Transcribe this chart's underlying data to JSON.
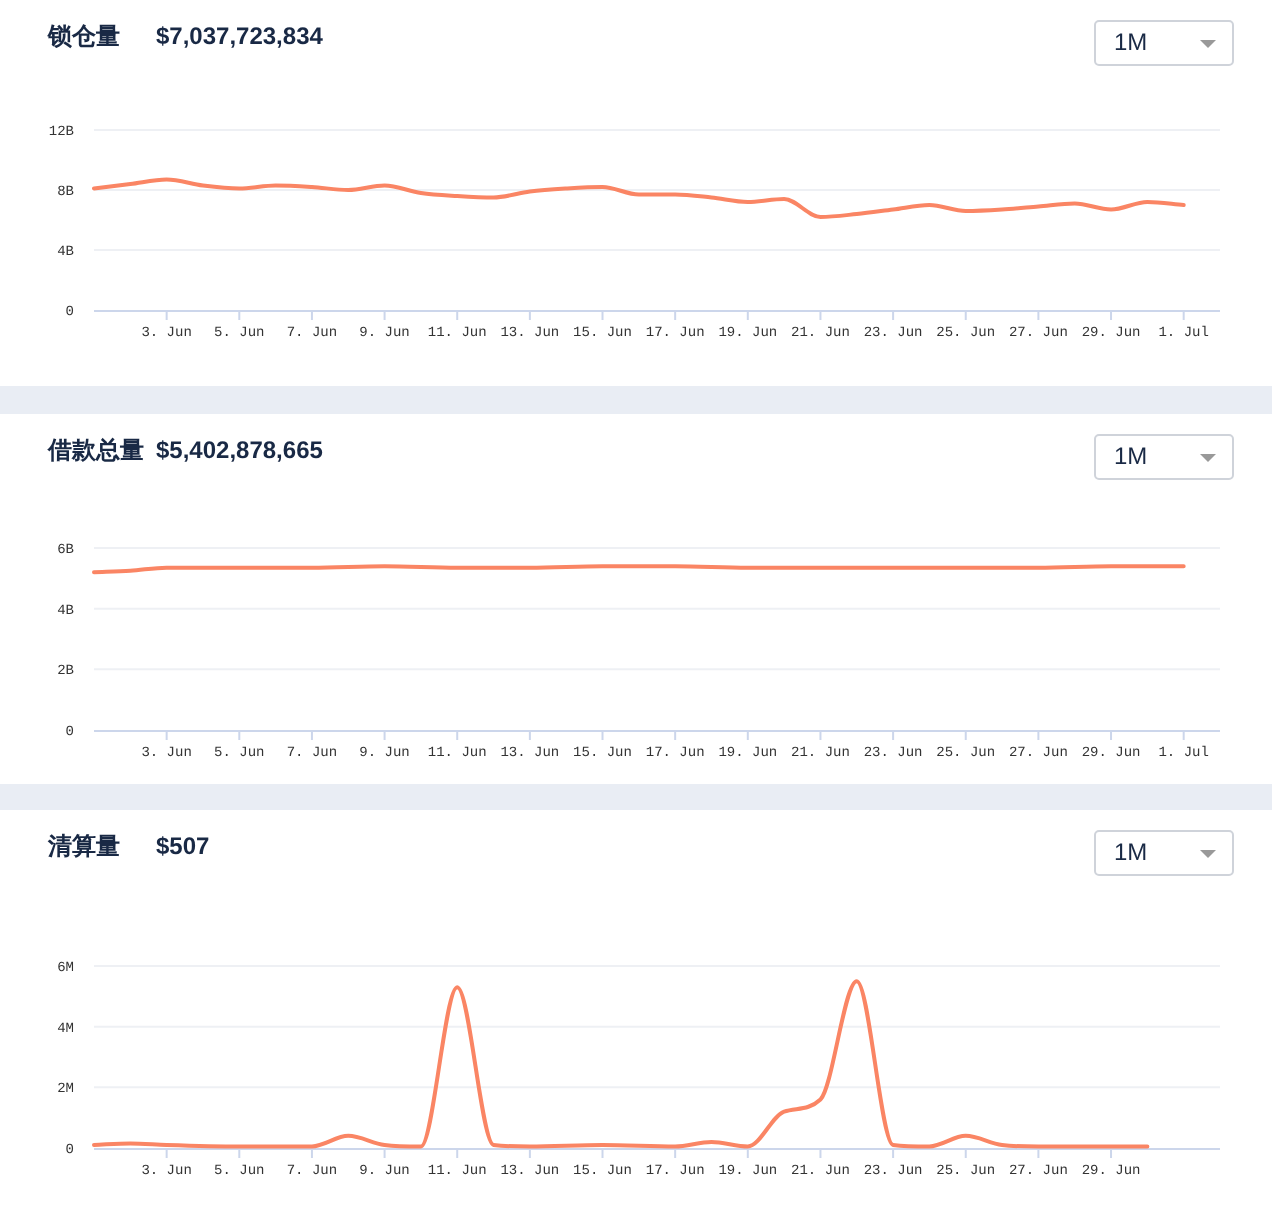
{
  "chart_data": [
    {
      "type": "line",
      "title": "锁仓量",
      "subtitle": "$7,037,723,834",
      "annotations": [
        "1M"
      ],
      "grid": "y",
      "x": [
        "--06-01",
        "--06-02",
        "--06-03",
        "--06-04",
        "--06-05",
        "--06-06",
        "--06-07",
        "--06-08",
        "--06-09",
        "--06-10",
        "--06-11",
        "--06-12",
        "--06-13",
        "--06-14",
        "--06-15",
        "--06-16",
        "--06-17",
        "--06-18",
        "--06-19",
        "--06-20",
        "--06-21",
        "--06-22",
        "--06-23",
        "--06-24",
        "--06-25",
        "--06-26",
        "--06-27",
        "--06-28",
        "--06-29",
        "--06-30",
        "--07-01"
      ],
      "series": [
        {
          "color": "#fa8564",
          "values": [
            8.1,
            8.4,
            8.7,
            8.3,
            8.1,
            8.3,
            8.2,
            8.0,
            8.3,
            7.8,
            7.6,
            7.5,
            7.9,
            8.1,
            8.2,
            7.7,
            7.7,
            7.5,
            7.2,
            7.4,
            6.2,
            6.4,
            6.7,
            7.0,
            6.6,
            6.7,
            6.9,
            7.1,
            6.7,
            7.2,
            7.0
          ]
        }
      ],
      "xlim": [
        "--06-01",
        "--07-02"
      ],
      "ylim": [
        0,
        12
      ],
      "yticks": [
        {
          "value": 0,
          "label": "0"
        },
        {
          "value": 4,
          "label": "4B"
        },
        {
          "value": 8,
          "label": "8B"
        },
        {
          "value": 12,
          "label": "12B"
        }
      ],
      "xticks": [
        {
          "value": "--06-03",
          "label": "3. Jun"
        },
        {
          "value": "--06-05",
          "label": "5. Jun"
        },
        {
          "value": "--06-07",
          "label": "7. Jun"
        },
        {
          "value": "--06-09",
          "label": "9. Jun"
        },
        {
          "value": "--06-11",
          "label": "11. Jun"
        },
        {
          "value": "--06-13",
          "label": "13. Jun"
        },
        {
          "value": "--06-15",
          "label": "15. Jun"
        },
        {
          "value": "--06-17",
          "label": "17. Jun"
        },
        {
          "value": "--06-19",
          "label": "19. Jun"
        },
        {
          "value": "--06-21",
          "label": "21. Jun"
        },
        {
          "value": "--06-23",
          "label": "23. Jun"
        },
        {
          "value": "--06-25",
          "label": "25. Jun"
        },
        {
          "value": "--06-27",
          "label": "27. Jun"
        },
        {
          "value": "--06-29",
          "label": "29. Jun"
        },
        {
          "value": "--07-01",
          "label": "1. Jul"
        }
      ]
    },
    {
      "type": "line",
      "title": "借款总量",
      "subtitle": "$5,402,878,665",
      "annotations": [
        "1M"
      ],
      "grid": "y",
      "x": [
        "--06-01",
        "--06-02",
        "--06-03",
        "--06-05",
        "--06-07",
        "--06-09",
        "--06-11",
        "--06-13",
        "--06-15",
        "--06-17",
        "--06-19",
        "--06-21",
        "--06-23",
        "--06-25",
        "--06-27",
        "--06-29",
        "--07-01"
      ],
      "series": [
        {
          "color": "#fa8564",
          "values": [
            5.2,
            5.25,
            5.35,
            5.35,
            5.35,
            5.4,
            5.35,
            5.35,
            5.4,
            5.4,
            5.35,
            5.35,
            5.35,
            5.35,
            5.35,
            5.4,
            5.4
          ]
        }
      ],
      "xlim": [
        "--06-01",
        "--07-02"
      ],
      "ylim": [
        0,
        6
      ],
      "yticks": [
        {
          "value": 0,
          "label": "0"
        },
        {
          "value": 2,
          "label": "2B"
        },
        {
          "value": 4,
          "label": "4B"
        },
        {
          "value": 6,
          "label": "6B"
        }
      ],
      "xticks": [
        {
          "value": "--06-03",
          "label": "3. Jun"
        },
        {
          "value": "--06-05",
          "label": "5. Jun"
        },
        {
          "value": "--06-07",
          "label": "7. Jun"
        },
        {
          "value": "--06-09",
          "label": "9. Jun"
        },
        {
          "value": "--06-11",
          "label": "11. Jun"
        },
        {
          "value": "--06-13",
          "label": "13. Jun"
        },
        {
          "value": "--06-15",
          "label": "15. Jun"
        },
        {
          "value": "--06-17",
          "label": "17. Jun"
        },
        {
          "value": "--06-19",
          "label": "19. Jun"
        },
        {
          "value": "--06-21",
          "label": "21. Jun"
        },
        {
          "value": "--06-23",
          "label": "23. Jun"
        },
        {
          "value": "--06-25",
          "label": "25. Jun"
        },
        {
          "value": "--06-27",
          "label": "27. Jun"
        },
        {
          "value": "--06-29",
          "label": "29. Jun"
        },
        {
          "value": "--07-01",
          "label": "1. Jul"
        }
      ]
    },
    {
      "type": "line",
      "title": "清算量",
      "subtitle": "$507",
      "annotations": [
        "1M"
      ],
      "grid": "y",
      "x": [
        "--06-01",
        "--06-02",
        "--06-03",
        "--06-05",
        "--06-07",
        "--06-08",
        "--06-09",
        "--06-10",
        "--06-11",
        "--06-12",
        "--06-13",
        "--06-15",
        "--06-17",
        "--06-18",
        "--06-19",
        "--06-20",
        "--06-21",
        "--06-22",
        "--06-23",
        "--06-24",
        "--06-25",
        "--06-26",
        "--06-27",
        "--06-29",
        "--06-30"
      ],
      "series": [
        {
          "color": "#fa8564",
          "values": [
            0.1,
            0.15,
            0.1,
            0.05,
            0.05,
            0.4,
            0.1,
            0.05,
            5.3,
            0.1,
            0.05,
            0.1,
            0.05,
            0.2,
            0.05,
            1.2,
            1.6,
            5.5,
            0.1,
            0.05,
            0.4,
            0.1,
            0.05,
            0.05,
            0.05
          ]
        }
      ],
      "xlim": [
        "--06-01",
        "--07-02"
      ],
      "ylim": [
        0,
        6
      ],
      "yticks": [
        {
          "value": 0,
          "label": "0"
        },
        {
          "value": 2,
          "label": "2M"
        },
        {
          "value": 4,
          "label": "4M"
        },
        {
          "value": 6,
          "label": "6M"
        }
      ],
      "xticks": [
        {
          "value": "--06-03",
          "label": "3. Jun"
        },
        {
          "value": "--06-05",
          "label": "5. Jun"
        },
        {
          "value": "--06-07",
          "label": "7. Jun"
        },
        {
          "value": "--06-09",
          "label": "9. Jun"
        },
        {
          "value": "--06-11",
          "label": "11. Jun"
        },
        {
          "value": "--06-13",
          "label": "13. Jun"
        },
        {
          "value": "--06-15",
          "label": "15. Jun"
        },
        {
          "value": "--06-17",
          "label": "17. Jun"
        },
        {
          "value": "--06-19",
          "label": "19. Jun"
        },
        {
          "value": "--06-21",
          "label": "21. Jun"
        },
        {
          "value": "--06-23",
          "label": "23. Jun"
        },
        {
          "value": "--06-25",
          "label": "25. Jun"
        },
        {
          "value": "--06-27",
          "label": "27. Jun"
        },
        {
          "value": "--06-29",
          "label": "29. Jun"
        }
      ]
    }
  ]
}
